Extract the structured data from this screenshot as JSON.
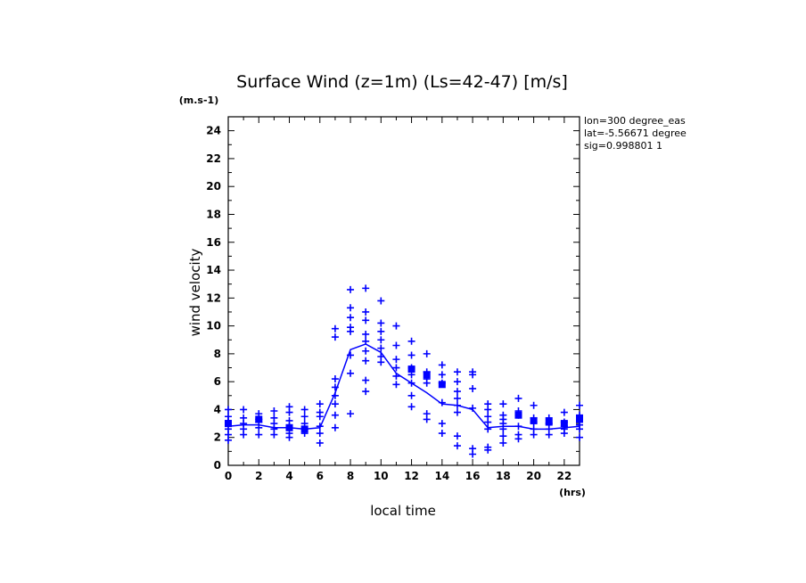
{
  "chart_data": {
    "type": "scatter",
    "title": "Surface Wind (z=1m) (Ls=42-47) [m/s]",
    "ylabel": "wind velocity",
    "xlabel": "local time",
    "y_unit": "(m.s-1)",
    "x_unit": "(hrs)",
    "info_lines": [
      "lon=300 degree_eas",
      "lat=-5.56671 degree",
      "sig=0.998801 1"
    ],
    "xlim": [
      0,
      23
    ],
    "ylim": [
      0,
      25
    ],
    "x_ticks": [
      0,
      2,
      4,
      6,
      8,
      10,
      12,
      14,
      16,
      18,
      20,
      22
    ],
    "y_ticks": [
      0,
      2,
      4,
      6,
      8,
      10,
      12,
      14,
      16,
      18,
      20,
      22,
      24
    ],
    "color": "#0000ff",
    "grid": false,
    "mean_line": {
      "x": [
        0,
        1,
        2,
        3,
        4,
        5,
        6,
        7,
        8,
        9,
        10,
        11,
        12,
        13,
        14,
        15,
        16,
        17,
        18,
        19,
        20,
        21,
        22,
        23
      ],
      "y": [
        2.8,
        2.9,
        2.9,
        2.7,
        2.7,
        2.6,
        2.7,
        5.2,
        8.3,
        8.7,
        8.1,
        6.6,
        5.9,
        5.2,
        4.4,
        4.3,
        4.0,
        2.7,
        2.8,
        2.8,
        2.6,
        2.6,
        2.7,
        2.8
      ]
    },
    "samples": [
      {
        "x": 0,
        "y": [
          3.2,
          3.5,
          4.0,
          2.6,
          2.2,
          1.8
        ]
      },
      {
        "x": 1,
        "y": [
          4.0,
          3.4,
          3.0,
          2.6,
          2.2
        ]
      },
      {
        "x": 2,
        "y": [
          3.7,
          3.3,
          3.1,
          2.7,
          2.2
        ]
      },
      {
        "x": 3,
        "y": [
          3.9,
          3.4,
          3.0,
          2.6,
          2.2
        ]
      },
      {
        "x": 4,
        "y": [
          4.2,
          3.8,
          3.2,
          2.8,
          2.3,
          2.0
        ]
      },
      {
        "x": 5,
        "y": [
          4.0,
          3.5,
          3.0,
          2.6,
          2.3
        ]
      },
      {
        "x": 6,
        "y": [
          4.4,
          3.8,
          3.5,
          2.8,
          2.3,
          1.6
        ]
      },
      {
        "x": 7,
        "y": [
          9.8,
          9.2,
          6.2,
          5.6,
          5.0,
          4.4,
          3.6,
          2.7
        ]
      },
      {
        "x": 8,
        "y": [
          12.6,
          11.3,
          10.6,
          9.9,
          9.6,
          7.9,
          6.6,
          3.7
        ]
      },
      {
        "x": 9,
        "y": [
          12.7,
          11.0,
          10.4,
          9.4,
          8.9,
          8.2,
          7.5,
          6.1,
          5.3
        ]
      },
      {
        "x": 10,
        "y": [
          11.8,
          10.2,
          9.6,
          9.0,
          8.4,
          7.8,
          7.4
        ]
      },
      {
        "x": 11,
        "y": [
          10.0,
          8.6,
          7.6,
          7.0,
          6.4,
          5.8
        ]
      },
      {
        "x": 12,
        "y": [
          8.9,
          7.9,
          7.0,
          6.5,
          5.9,
          5.0,
          4.2
        ]
      },
      {
        "x": 13,
        "y": [
          8.0,
          6.7,
          6.2,
          5.9,
          3.7,
          3.3
        ]
      },
      {
        "x": 14,
        "y": [
          7.2,
          6.5,
          5.9,
          4.5,
          3.0,
          2.3
        ]
      },
      {
        "x": 15,
        "y": [
          6.7,
          6.0,
          5.3,
          4.8,
          4.3,
          3.8,
          2.1,
          1.4
        ]
      },
      {
        "x": 16,
        "y": [
          6.7,
          6.5,
          5.5,
          4.1,
          1.2,
          0.8
        ]
      },
      {
        "x": 17,
        "y": [
          4.4,
          4.0,
          3.5,
          3.1,
          2.6,
          1.3,
          1.1
        ]
      },
      {
        "x": 18,
        "y": [
          4.4,
          3.6,
          3.3,
          3.0,
          2.6,
          2.1,
          1.6
        ]
      },
      {
        "x": 19,
        "y": [
          4.8,
          3.9,
          3.6,
          2.8,
          2.2,
          1.9
        ]
      },
      {
        "x": 20,
        "y": [
          4.3,
          3.4,
          3.1,
          2.6,
          2.2
        ]
      },
      {
        "x": 21,
        "y": [
          3.4,
          3.0,
          2.6,
          2.2
        ]
      },
      {
        "x": 22,
        "y": [
          3.8,
          3.1,
          2.8,
          2.6,
          2.3
        ]
      },
      {
        "x": 23,
        "y": [
          4.3,
          3.6,
          3.2,
          2.9,
          2.6,
          2.0
        ]
      }
    ],
    "filled_markers": [
      {
        "x": 0,
        "y": 3.0
      },
      {
        "x": 2,
        "y": 3.3
      },
      {
        "x": 4,
        "y": 2.7
      },
      {
        "x": 5,
        "y": 2.6
      },
      {
        "x": 12,
        "y": 6.9
      },
      {
        "x": 13,
        "y": 6.5
      },
      {
        "x": 14,
        "y": 5.8
      },
      {
        "x": 19,
        "y": 3.6
      },
      {
        "x": 20,
        "y": 3.2
      },
      {
        "x": 21,
        "y": 3.1
      },
      {
        "x": 22,
        "y": 3.0
      },
      {
        "x": 23,
        "y": 3.3
      }
    ]
  }
}
